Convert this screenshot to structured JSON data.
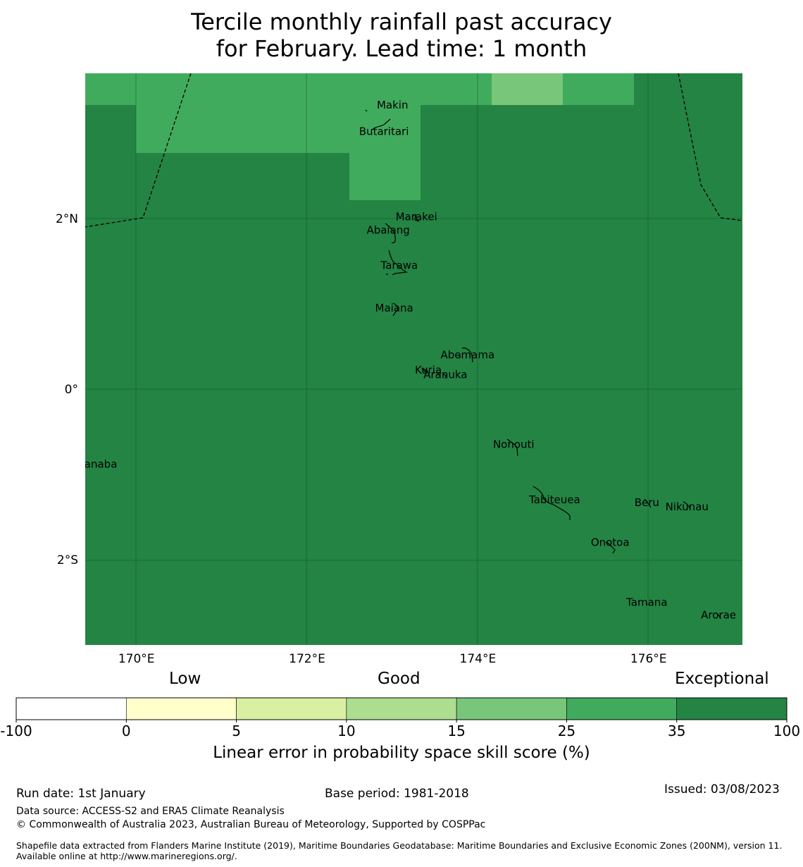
{
  "title": {
    "line1": "Tercile monthly rainfall past accuracy",
    "line2": "for February. Lead time: 1 month"
  },
  "colors": {
    "exceptional": "#248444",
    "high": "#41ab5d",
    "mid": "#78c679",
    "good": "#addd8e",
    "fair": "#d9f0a3",
    "low": "#ffffcc",
    "none": "#ffffff"
  },
  "map": {
    "lon_range": [
      169.4,
      177.1
    ],
    "lat_range": [
      -3.0,
      3.7
    ],
    "x_ticks": [
      {
        "lon": 170,
        "label": "170°E"
      },
      {
        "lon": 172,
        "label": "172°E"
      },
      {
        "lon": 174,
        "label": "174°E"
      },
      {
        "lon": 176,
        "label": "176°E"
      }
    ],
    "y_ticks": [
      {
        "lat": 2,
        "label": "2°N"
      },
      {
        "lat": 0,
        "label": "0°"
      },
      {
        "lat": -2,
        "label": "2°S"
      }
    ],
    "islands": [
      {
        "name": "Makin",
        "lon": 173.0,
        "lat": 3.33
      },
      {
        "name": "Butaritari",
        "lon": 172.9,
        "lat": 3.02
      },
      {
        "name": "Marakei",
        "lon": 173.28,
        "lat": 2.02
      },
      {
        "name": "Abaiang",
        "lon": 172.95,
        "lat": 1.86
      },
      {
        "name": "Tarawa",
        "lon": 173.08,
        "lat": 1.45
      },
      {
        "name": "Maiana",
        "lon": 173.02,
        "lat": 0.95
      },
      {
        "name": "Abemama",
        "lon": 173.88,
        "lat": 0.4
      },
      {
        "name": "Kuria",
        "lon": 173.42,
        "lat": 0.22
      },
      {
        "name": "Aranuka",
        "lon": 173.62,
        "lat": 0.17
      },
      {
        "name": "Nonouti",
        "lon": 174.42,
        "lat": -0.65
      },
      {
        "name": "Banaba",
        "lon": 169.54,
        "lat": -0.88
      },
      {
        "name": "Tabiteuea",
        "lon": 174.9,
        "lat": -1.3
      },
      {
        "name": "Beru",
        "lon": 175.98,
        "lat": -1.33
      },
      {
        "name": "Nikunau",
        "lon": 176.45,
        "lat": -1.38
      },
      {
        "name": "Onotoa",
        "lon": 175.55,
        "lat": -1.8
      },
      {
        "name": "Tamana",
        "lon": 175.98,
        "lat": -2.5
      },
      {
        "name": "Arorae",
        "lon": 176.82,
        "lat": -2.65
      }
    ]
  },
  "colorbar": {
    "category_labels": [
      "Low",
      "Good",
      "Exceptional"
    ],
    "ticks": [
      "-100",
      "0",
      "5",
      "10",
      "15",
      "25",
      "35",
      "100"
    ],
    "bins": [
      {
        "from": -100,
        "to": 0,
        "color": "#ffffff"
      },
      {
        "from": 0,
        "to": 5,
        "color": "#ffffcc"
      },
      {
        "from": 5,
        "to": 10,
        "color": "#d9f0a3"
      },
      {
        "from": 10,
        "to": 15,
        "color": "#addd8e"
      },
      {
        "from": 15,
        "to": 25,
        "color": "#78c679"
      },
      {
        "from": 25,
        "to": 35,
        "color": "#41ab5d"
      },
      {
        "from": 35,
        "to": 100,
        "color": "#248444"
      }
    ],
    "label": "Linear error in probability space skill score (%)"
  },
  "footer": {
    "run_date": "Run date: 1st January",
    "base_period": "Base period: 1981-2018",
    "issued": "Issued: 03/08/2023",
    "data_source": "Data source: ACCESS-S2 and ERA5 Climate Reanalysis",
    "copyright": "© Commonwealth of Australia 2023, Australian Bureau of Meteorology, Supported by COSPPac",
    "shapefile": "Shapefile data extracted from Flanders Marine Institute (2019), Maritime Boundaries Geodatabase: Maritime Boundaries and Exclusive Economic Zones (200NM), version 11. Available online at http://www.marineregions.org/."
  }
}
